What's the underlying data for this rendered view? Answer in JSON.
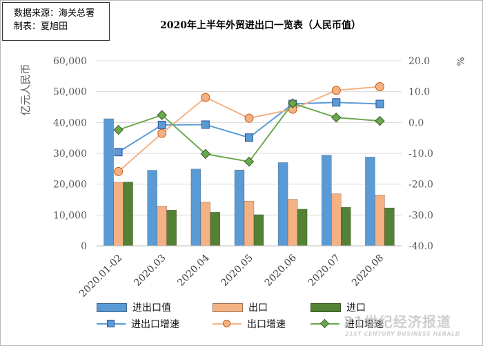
{
  "source_box": {
    "source_line": "数据来源：海关总署",
    "maker_line": "制表：夏旭田"
  },
  "watermark": {
    "main": "21世纪经济报道",
    "sub": "21ST CENTURY BUSINESS HERALD"
  },
  "chart_data": {
    "type": "bar",
    "title": "2020年上半年外贸进出口一览表（人民币值）",
    "categories": [
      "2020.01-02",
      "2020.03",
      "2020.04",
      "2020.05",
      "2020.06",
      "2020.07",
      "2020.08"
    ],
    "y_left": {
      "label": "亿元人民币",
      "range": [
        0,
        60000
      ],
      "ticks": [
        0,
        10000,
        20000,
        30000,
        40000,
        50000,
        60000
      ],
      "tick_labels": [
        "0",
        "10,000",
        "20,000",
        "30,000",
        "40,000",
        "50,000",
        "60,000"
      ]
    },
    "y_right": {
      "label": "%",
      "range": [
        -40,
        20
      ],
      "ticks": [
        -40,
        -30,
        -20,
        -10,
        0,
        10,
        20
      ],
      "tick_labels": [
        "-40.0",
        "-30.0",
        "-20.0",
        "-10.0",
        "0.0",
        "10.0",
        "20.0"
      ]
    },
    "grid": true,
    "legend_position": "bottom",
    "bar_series": [
      {
        "name": "进出口值",
        "color": "#5b9bd5",
        "values": [
          41200,
          24500,
          24900,
          24600,
          27000,
          29400,
          28800
        ]
      },
      {
        "name": "出口",
        "color": "#f4b183",
        "values": [
          20600,
          12900,
          14200,
          14500,
          15100,
          16900,
          16500
        ]
      },
      {
        "name": "进口",
        "color": "#548235",
        "values": [
          20700,
          11600,
          10900,
          10100,
          11900,
          12500,
          12300
        ]
      }
    ],
    "line_series": [
      {
        "name": "进出口增速",
        "color": "#5b9bd5",
        "marker": "square",
        "axis": "right",
        "values": [
          -9.6,
          -0.8,
          -0.7,
          -4.9,
          6.0,
          6.5,
          6.0
        ]
      },
      {
        "name": "出口增速",
        "color": "#f4b183",
        "marker": "circle",
        "axis": "right",
        "values": [
          -15.9,
          -3.5,
          8.1,
          1.4,
          4.3,
          10.4,
          11.6
        ]
      },
      {
        "name": "进口增速",
        "color": "#6aa84f",
        "marker": "diamond",
        "axis": "right",
        "values": [
          -2.4,
          2.4,
          -10.2,
          -12.7,
          6.2,
          1.6,
          0.5
        ]
      }
    ]
  }
}
